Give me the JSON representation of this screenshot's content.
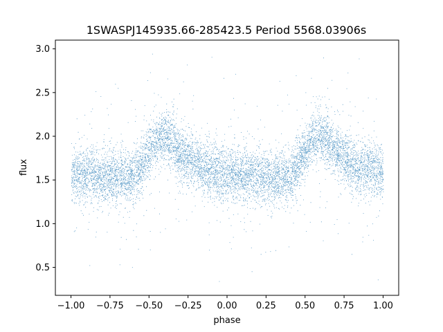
{
  "chart_data": {
    "type": "scatter",
    "title": "1SWASPJ145935.66-285423.5 Period 5568.03906s",
    "xlabel": "phase",
    "ylabel": "flux",
    "xlim": [
      -1.1,
      1.1
    ],
    "ylim": [
      0.18,
      3.1
    ],
    "x_ticks": [
      -1.0,
      -0.75,
      -0.5,
      -0.25,
      0.0,
      0.25,
      0.5,
      0.75,
      1.0
    ],
    "x_tick_labels": [
      "−1.00",
      "−0.75",
      "−0.50",
      "−0.25",
      "0.00",
      "0.25",
      "0.50",
      "0.75",
      "1.00"
    ],
    "y_ticks": [
      0.5,
      1.0,
      1.5,
      2.0,
      2.5,
      3.0
    ],
    "y_tick_labels": [
      "0.5",
      "1.0",
      "1.5",
      "2.0",
      "2.5",
      "3.0"
    ],
    "grid": false,
    "marker_color": "#1f77b4",
    "phase_range": [
      -1.0,
      1.0
    ],
    "light_curve": {
      "phase": [
        -1.0,
        -0.9,
        -0.8,
        -0.7,
        -0.6,
        -0.55,
        -0.5,
        -0.45,
        -0.4,
        -0.35,
        -0.3,
        -0.25,
        -0.2,
        -0.1,
        0.0,
        0.1,
        0.2,
        0.3,
        0.4,
        0.45,
        0.5,
        0.55,
        0.6,
        0.65,
        0.7,
        0.75,
        0.8,
        0.9,
        1.0
      ],
      "median_flux": [
        1.58,
        1.56,
        1.53,
        1.52,
        1.55,
        1.65,
        1.82,
        1.98,
        2.0,
        1.93,
        1.82,
        1.75,
        1.68,
        1.62,
        1.58,
        1.56,
        1.53,
        1.52,
        1.55,
        1.65,
        1.82,
        1.98,
        2.0,
        1.93,
        1.82,
        1.75,
        1.68,
        1.62,
        1.58
      ]
    }
  }
}
